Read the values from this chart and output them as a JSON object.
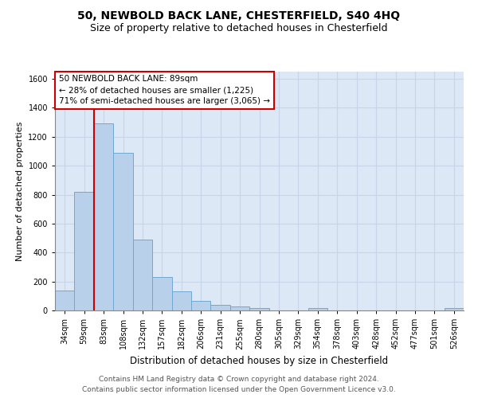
{
  "title": "50, NEWBOLD BACK LANE, CHESTERFIELD, S40 4HQ",
  "subtitle": "Size of property relative to detached houses in Chesterfield",
  "xlabel": "Distribution of detached houses by size in Chesterfield",
  "ylabel": "Number of detached properties",
  "categories": [
    "34sqm",
    "59sqm",
    "83sqm",
    "108sqm",
    "132sqm",
    "157sqm",
    "182sqm",
    "206sqm",
    "231sqm",
    "255sqm",
    "280sqm",
    "305sqm",
    "329sqm",
    "354sqm",
    "378sqm",
    "403sqm",
    "428sqm",
    "452sqm",
    "477sqm",
    "501sqm",
    "526sqm"
  ],
  "values": [
    140,
    820,
    1290,
    1090,
    490,
    230,
    130,
    65,
    38,
    27,
    15,
    0,
    0,
    15,
    0,
    0,
    0,
    0,
    0,
    0,
    15
  ],
  "bar_color": "#b8d0ea",
  "bar_edge_color": "#6fa8d0",
  "red_line_color": "#cc0000",
  "red_line_bin_index": 2,
  "annotation_line1": "50 NEWBOLD BACK LANE: 89sqm",
  "annotation_line2": "← 28% of detached houses are smaller (1,225)",
  "annotation_line3": "71% of semi-detached houses are larger (3,065) →",
  "annotation_box_facecolor": "#ffffff",
  "annotation_box_edgecolor": "#cc0000",
  "ylim": [
    0,
    1650
  ],
  "yticks": [
    0,
    200,
    400,
    600,
    800,
    1000,
    1200,
    1400,
    1600
  ],
  "grid_color": "#c8d4e8",
  "background_color": "#dce8f5",
  "footer_line1": "Contains HM Land Registry data © Crown copyright and database right 2024.",
  "footer_line2": "Contains public sector information licensed under the Open Government Licence v3.0.",
  "title_fontsize": 10,
  "subtitle_fontsize": 9,
  "ylabel_fontsize": 8,
  "xlabel_fontsize": 8.5,
  "tick_fontsize": 7,
  "annotation_fontsize": 7.5,
  "footer_fontsize": 6.5
}
